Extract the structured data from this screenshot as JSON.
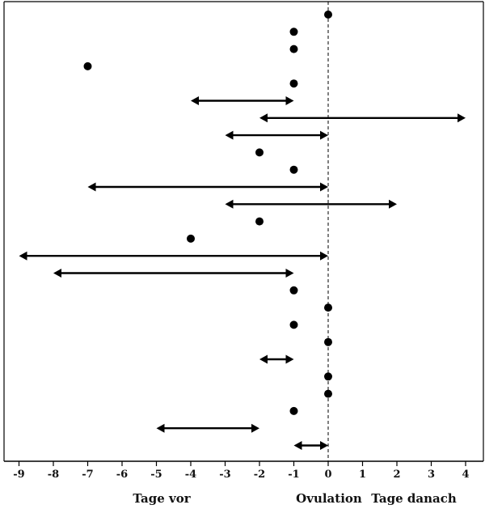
{
  "chart_data": {
    "type": "scatter",
    "title": "",
    "xlabel_left": "Tage vor",
    "xlabel_center": "Ovulation",
    "xlabel_right": "Tage danach",
    "xlim": [
      -9.4,
      4.5
    ],
    "x_ticks": [
      -9,
      -8,
      -7,
      -6,
      -5,
      -4,
      -3,
      -2,
      -1,
      0,
      1,
      2,
      3,
      4
    ],
    "x_tick_labels": [
      "-9",
      "-8",
      "-7",
      "-6",
      "-5",
      "-4",
      "-3",
      "-2",
      "-1",
      "0",
      "1",
      "2",
      "3",
      "4"
    ],
    "reference_line_x": 0,
    "rows": [
      {
        "kind": "point",
        "x": 0
      },
      {
        "kind": "point",
        "x": -1
      },
      {
        "kind": "point",
        "x": -1
      },
      {
        "kind": "point",
        "x": -7
      },
      {
        "kind": "point",
        "x": -1
      },
      {
        "kind": "range",
        "from": -4,
        "to": -1
      },
      {
        "kind": "range",
        "from": -2,
        "to": 4
      },
      {
        "kind": "range",
        "from": -3,
        "to": 0
      },
      {
        "kind": "point",
        "x": -2
      },
      {
        "kind": "point",
        "x": -1
      },
      {
        "kind": "range",
        "from": -7,
        "to": 0
      },
      {
        "kind": "range",
        "from": -3,
        "to": 2
      },
      {
        "kind": "point",
        "x": -2
      },
      {
        "kind": "point",
        "x": -4
      },
      {
        "kind": "range",
        "from": -9,
        "to": 0
      },
      {
        "kind": "range",
        "from": -8,
        "to": -1
      },
      {
        "kind": "point",
        "x": -1
      },
      {
        "kind": "point",
        "x": 0
      },
      {
        "kind": "point",
        "x": -1
      },
      {
        "kind": "point",
        "x": 0
      },
      {
        "kind": "range",
        "from": -2,
        "to": -1
      },
      {
        "kind": "point",
        "x": 0
      },
      {
        "kind": "point",
        "x": 0
      },
      {
        "kind": "point",
        "x": -1
      },
      {
        "kind": "range",
        "from": -5,
        "to": -2
      },
      {
        "kind": "range",
        "from": -1,
        "to": 0
      }
    ]
  }
}
